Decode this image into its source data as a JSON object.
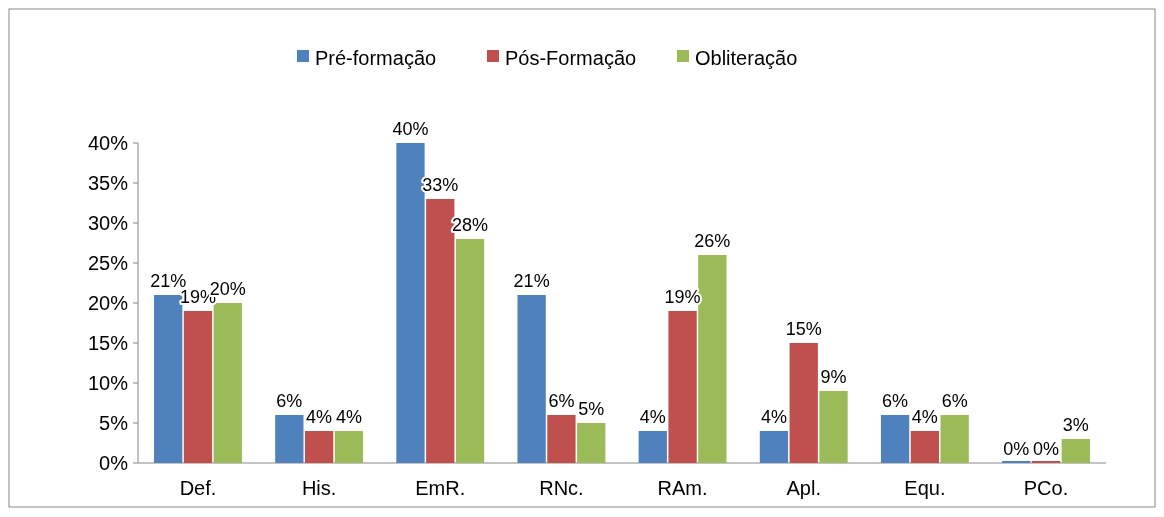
{
  "chart_data": {
    "type": "bar",
    "categories": [
      "Def.",
      "His.",
      "EmR.",
      "RNc.",
      "RAm.",
      "Apl.",
      "Equ.",
      "PCo."
    ],
    "series": [
      {
        "name": "Pré-formação",
        "color": "#4f81bd",
        "values": [
          21,
          6,
          40,
          21,
          4,
          4,
          6,
          0
        ],
        "value_labels": [
          "21%",
          "6%",
          "40%",
          "21%",
          "4%",
          "4%",
          "6%",
          "0%"
        ]
      },
      {
        "name": "Pós-Formação",
        "color": "#c0504d",
        "values": [
          19,
          4,
          33,
          6,
          19,
          15,
          4,
          0
        ],
        "value_labels": [
          "19%",
          "4%",
          "33%",
          "6%",
          "19%",
          "15%",
          "4%",
          "0%"
        ]
      },
      {
        "name": "Obliteração",
        "color": "#9bbb59",
        "values": [
          20,
          4,
          28,
          5,
          26,
          9,
          6,
          3
        ],
        "value_labels": [
          "20%",
          "4%",
          "28%",
          "5%",
          "26%",
          "9%",
          "6%",
          "3%"
        ]
      }
    ],
    "ylim": [
      0,
      40
    ],
    "yticks": [
      {
        "value": 0,
        "label": "0%"
      },
      {
        "value": 5,
        "label": "5%"
      },
      {
        "value": 10,
        "label": "10%"
      },
      {
        "value": 15,
        "label": "15%"
      },
      {
        "value": 20,
        "label": "20%"
      },
      {
        "value": 25,
        "label": "25%"
      },
      {
        "value": 30,
        "label": "30%"
      },
      {
        "value": 35,
        "label": "35%"
      },
      {
        "value": 40,
        "label": "40%"
      }
    ],
    "grid": false,
    "legend": "top"
  }
}
